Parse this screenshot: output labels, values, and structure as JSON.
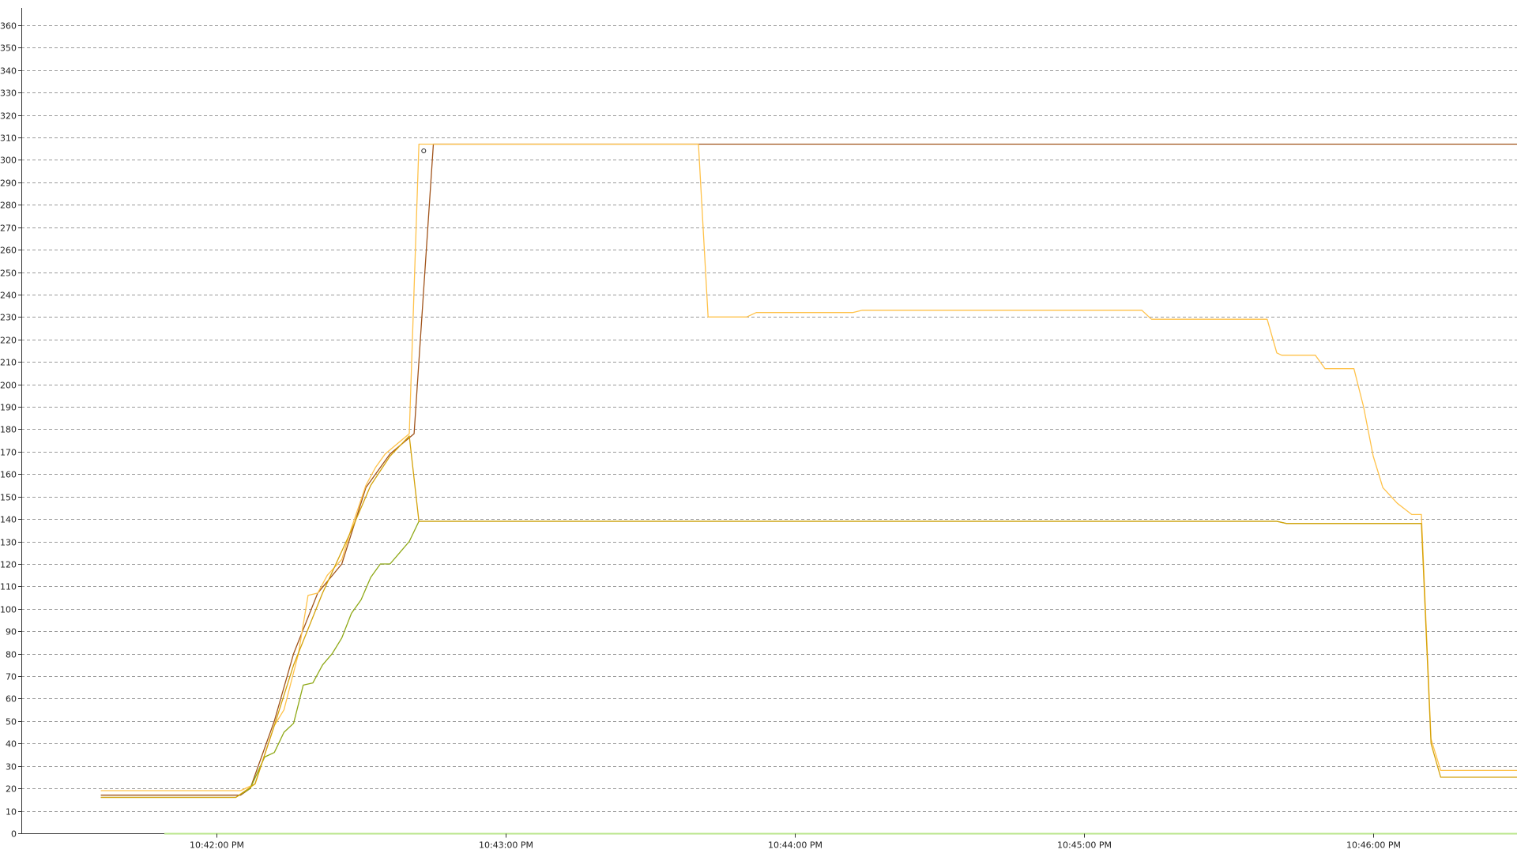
{
  "chart_data": {
    "type": "line",
    "title": "",
    "xlabel": "",
    "ylabel": "",
    "grid": true,
    "ylim": [
      0,
      365
    ],
    "yticks": [
      0,
      10,
      20,
      30,
      40,
      50,
      60,
      70,
      80,
      90,
      100,
      110,
      120,
      130,
      140,
      150,
      160,
      170,
      180,
      190,
      200,
      210,
      220,
      230,
      240,
      250,
      260,
      270,
      280,
      290,
      300,
      310,
      320,
      330,
      340,
      350,
      360
    ],
    "xlim": [
      "10:41:25 PM",
      "10:46:30 PM"
    ],
    "xticks": [
      {
        "label": "10:42:00 PM",
        "t": "10:42:00 PM"
      },
      {
        "label": "10:43:00 PM",
        "t": "10:43:00 PM"
      },
      {
        "label": "10:44:00 PM",
        "t": "10:44:00 PM"
      },
      {
        "label": "10:45:00 PM",
        "t": "10:45:00 PM"
      },
      {
        "label": "10:46:00 PM",
        "t": "10:46:00 PM"
      }
    ],
    "colors": {
      "series_a": "#a0531a",
      "series_b": "#ffc24a",
      "series_c": "#8ea815",
      "series_d": "#d4a20a",
      "x_axis_highlight": "#b9e68a",
      "marker": "#222222"
    },
    "series": [
      {
        "color": "#a0531a",
        "points": [
          [
            "10:41:36 PM",
            17
          ],
          [
            "10:42:05 PM",
            17
          ],
          [
            "10:42:07 PM",
            20
          ],
          [
            "10:42:12 PM",
            50
          ],
          [
            "10:42:16 PM",
            80
          ],
          [
            "10:42:21 PM",
            107
          ],
          [
            "10:42:26 PM",
            120
          ],
          [
            "10:42:31 PM",
            154
          ],
          [
            "10:42:36 PM",
            169
          ],
          [
            "10:42:41 PM",
            178
          ],
          [
            "10:42:45 PM",
            307
          ],
          [
            "10:46:30 PM",
            307
          ]
        ]
      },
      {
        "color": "#ffc24a",
        "points": [
          [
            "10:41:36 PM",
            19
          ],
          [
            "10:42:05 PM",
            19
          ],
          [
            "10:42:08 PM",
            22
          ],
          [
            "10:42:12 PM",
            48
          ],
          [
            "10:42:14 PM",
            55
          ],
          [
            "10:42:17 PM",
            80
          ],
          [
            "10:42:19 PM",
            106
          ],
          [
            "10:42:21 PM",
            107
          ],
          [
            "10:42:23 PM",
            115
          ],
          [
            "10:42:26 PM",
            122
          ],
          [
            "10:42:28 PM",
            136
          ],
          [
            "10:42:31 PM",
            155
          ],
          [
            "10:42:33 PM",
            163
          ],
          [
            "10:42:35 PM",
            169
          ],
          [
            "10:42:40 PM",
            178
          ],
          [
            "10:42:42 PM",
            307
          ],
          [
            "10:43:40 PM",
            307
          ],
          [
            "10:43:42 PM",
            230
          ],
          [
            "10:43:50 PM",
            230
          ],
          [
            "10:43:52 PM",
            232
          ],
          [
            "10:44:12 PM",
            232
          ],
          [
            "10:44:14 PM",
            233
          ],
          [
            "10:45:12 PM",
            233
          ],
          [
            "10:45:14 PM",
            229
          ],
          [
            "10:45:38 PM",
            229
          ],
          [
            "10:45:40 PM",
            214
          ],
          [
            "10:45:41 PM",
            213
          ],
          [
            "10:45:48 PM",
            213
          ],
          [
            "10:45:50 PM",
            207
          ],
          [
            "10:45:56 PM",
            207
          ],
          [
            "10:45:58 PM",
            190
          ],
          [
            "10:46:00 PM",
            168
          ],
          [
            "10:46:02 PM",
            154
          ],
          [
            "10:46:05 PM",
            147
          ],
          [
            "10:46:08 PM",
            142
          ],
          [
            "10:46:10 PM",
            142
          ],
          [
            "10:46:12 PM",
            42
          ],
          [
            "10:46:14 PM",
            28
          ],
          [
            "10:46:30 PM",
            28
          ]
        ]
      },
      {
        "color": "#8ea815",
        "points": [
          [
            "10:41:36 PM",
            16
          ],
          [
            "10:42:04 PM",
            16
          ],
          [
            "10:42:07 PM",
            20
          ],
          [
            "10:42:10 PM",
            34
          ],
          [
            "10:42:12 PM",
            36
          ],
          [
            "10:42:14 PM",
            45
          ],
          [
            "10:42:16 PM",
            49
          ],
          [
            "10:42:18 PM",
            66
          ],
          [
            "10:42:20 PM",
            67
          ],
          [
            "10:42:22 PM",
            75
          ],
          [
            "10:42:24 PM",
            80
          ],
          [
            "10:42:26 PM",
            87
          ],
          [
            "10:42:28 PM",
            98
          ],
          [
            "10:42:30 PM",
            104
          ],
          [
            "10:42:32 PM",
            114
          ],
          [
            "10:42:34 PM",
            120
          ],
          [
            "10:42:36 PM",
            120
          ],
          [
            "10:42:38 PM",
            125
          ],
          [
            "10:42:40 PM",
            130
          ],
          [
            "10:42:42 PM",
            139
          ],
          [
            "10:45:40 PM",
            139
          ],
          [
            "10:45:42 PM",
            138
          ],
          [
            "10:46:10 PM",
            138
          ]
        ]
      },
      {
        "color": "#d4a20a",
        "points": [
          [
            "10:41:36 PM",
            16
          ],
          [
            "10:42:04 PM",
            16
          ],
          [
            "10:42:08 PM",
            22
          ],
          [
            "10:42:12 PM",
            48
          ],
          [
            "10:42:16 PM",
            75
          ],
          [
            "10:42:22 PM",
            107
          ],
          [
            "10:42:28 PM",
            135
          ],
          [
            "10:42:32 PM",
            155
          ],
          [
            "10:42:36 PM",
            168
          ],
          [
            "10:42:40 PM",
            177
          ],
          [
            "10:42:42 PM",
            139
          ],
          [
            "10:45:40 PM",
            139
          ],
          [
            "10:45:42 PM",
            138
          ],
          [
            "10:46:10 PM",
            138
          ],
          [
            "10:46:12 PM",
            40
          ],
          [
            "10:46:14 PM",
            25
          ],
          [
            "10:46:30 PM",
            25
          ]
        ]
      }
    ],
    "markers": [
      {
        "t": "10:42:43 PM",
        "y": 304
      }
    ]
  }
}
